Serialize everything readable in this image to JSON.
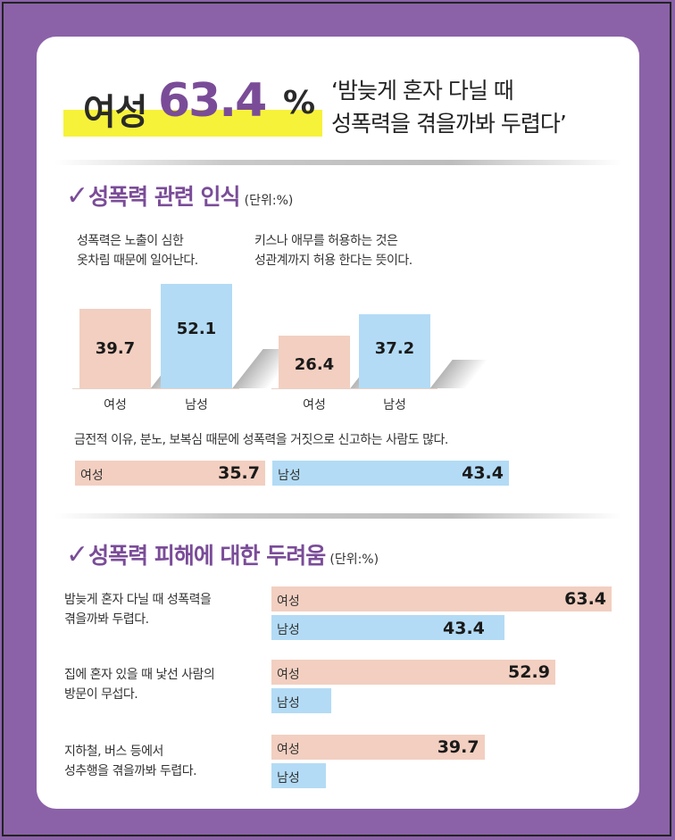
{
  "colors": {
    "background": "#8b62a8",
    "accent": "#7a4c98",
    "highlight": "#f6f23a",
    "female": "#f2cfc0",
    "male": "#b3dbf5"
  },
  "header": {
    "label": "여성",
    "number": "63.4",
    "percent": "%",
    "quote_line1": "‘밤늦게 혼자 다닐 때",
    "quote_line2": "성폭력을 겪을까봐 두렵다’"
  },
  "section1": {
    "title": "성폭력 관련 인식",
    "unit": "(단위:%)",
    "charts": [
      {
        "text_line1": "성폭력은 노출이 심한",
        "text_line2": "옷차림 때문에 일어난다."
      },
      {
        "text_line1": "키스나 애무를 허용하는 것은",
        "text_line2": "성관계까지 허용 한다는 뜻이다."
      }
    ],
    "hchart": {
      "text": "금전적 이유, 분노, 보복심 때문에 성폭력을 거짓으로 신고하는 사람도 많다."
    }
  },
  "section2": {
    "title": "성폭력 피해에 대한 두려움",
    "unit": "(단위:%)",
    "items": [
      {
        "text_line1": "밤늦게 혼자 다닐 때 성폭력을",
        "text_line2": "겪을까봐  두렵다."
      },
      {
        "text_line1": "집에 혼자 있을 때 낯선 사람의",
        "text_line2": "방문이 무섭다."
      },
      {
        "text_line1": "지하철, 버스 등에서",
        "text_line2": "성추행을 겪을까봐 두렵다."
      }
    ]
  },
  "chart_data": [
    {
      "type": "bar",
      "title": "성폭력은 노출이 심한 옷차림 때문에 일어난다.",
      "categories": [
        "여성",
        "남성"
      ],
      "values": [
        39.7,
        52.1
      ]
    },
    {
      "type": "bar",
      "title": "키스나 애무를 허용하는 것은 성관계까지 허용 한다는 뜻이다.",
      "categories": [
        "여성",
        "남성"
      ],
      "values": [
        26.4,
        37.2
      ]
    },
    {
      "type": "bar",
      "title": "금전적 이유, 분노, 보복심 때문에 성폭력을 거짓으로 신고하는 사람도 많다.",
      "categories": [
        "여성",
        "남성"
      ],
      "values": [
        35.7,
        43.4
      ]
    },
    {
      "type": "bar",
      "title": "성폭력 피해에 대한 두려움",
      "categories": [
        "밤늦게 혼자 다닐 때 성폭력을 겪을까봐 두렵다.",
        "집에 혼자 있을 때 낯선 사람의 방문이 무섭다.",
        "지하철, 버스 등에서 성추행을 겪을까봐 두렵다."
      ],
      "series": [
        {
          "name": "여성",
          "values": [
            63.4,
            52.9,
            39.7
          ],
          "labels": [
            "63.4",
            "52.9",
            "39.7"
          ]
        },
        {
          "name": "남성",
          "values": [
            43.4,
            11.1,
            10.2
          ],
          "labels": [
            "43.4",
            "",
            ""
          ]
        }
      ]
    }
  ]
}
